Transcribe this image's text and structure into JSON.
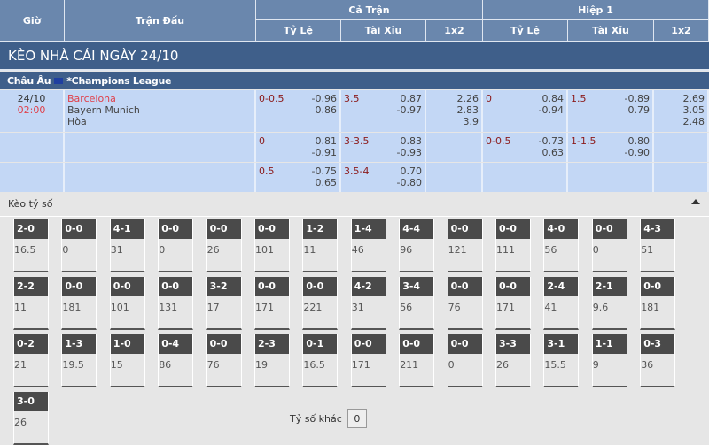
{
  "header": {
    "time": "Giờ",
    "match": "Trận Đấu",
    "full": "Cả Trận",
    "half": "Hiệp 1",
    "hdp": "Tỷ Lệ",
    "ou": "Tài Xỉu",
    "x12": "1x2"
  },
  "title": "KÈO NHÀ CÁI NGÀY 24/10",
  "league": {
    "region": "Châu Âu",
    "name": "*Champions League"
  },
  "match": {
    "date": "24/10",
    "time": "02:00",
    "home": "Barcelona",
    "away": "Bayern Munich",
    "draw": "Hòa"
  },
  "rows": [
    {
      "ft_hdp": "0-0.5",
      "ft_hdp_odds": [
        "-0.96",
        "0.86"
      ],
      "ft_ou": "3.5",
      "ft_ou_odds": [
        "0.87",
        "-0.97"
      ],
      "ft_1x2": [
        "2.26",
        "2.83",
        "3.9"
      ],
      "h1_hdp": "0",
      "h1_hdp_odds": [
        "0.84",
        "-0.94"
      ],
      "h1_ou": "1.5",
      "h1_ou_odds": [
        "-0.89",
        "0.79"
      ],
      "h1_1x2": [
        "2.69",
        "3.05",
        "2.48"
      ]
    },
    {
      "ft_hdp": "0",
      "ft_hdp_odds": [
        "0.81",
        "-0.91"
      ],
      "ft_ou": "3-3.5",
      "ft_ou_odds": [
        "0.83",
        "-0.93"
      ],
      "ft_1x2": [],
      "h1_hdp": "0-0.5",
      "h1_hdp_odds": [
        "-0.73",
        "0.63"
      ],
      "h1_ou": "1-1.5",
      "h1_ou_odds": [
        "0.80",
        "-0.90"
      ],
      "h1_1x2": []
    },
    {
      "ft_hdp": "0.5",
      "ft_hdp_odds": [
        "-0.75",
        "0.65"
      ],
      "ft_ou": "3.5-4",
      "ft_ou_odds": [
        "0.70",
        "-0.80"
      ],
      "ft_1x2": [],
      "h1_hdp": "",
      "h1_hdp_odds": [],
      "h1_ou": "",
      "h1_ou_odds": [],
      "h1_1x2": []
    }
  ],
  "correct_score": {
    "title": "Kèo tỷ số",
    "other_label": "Tỷ số khác",
    "other_value": "0",
    "cards": [
      [
        "2-0",
        "16.5"
      ],
      [
        "0-0",
        "0"
      ],
      [
        "4-1",
        "31"
      ],
      [
        "0-0",
        "0"
      ],
      [
        "0-0",
        "26"
      ],
      [
        "0-0",
        "101"
      ],
      [
        "1-2",
        "11"
      ],
      [
        "1-4",
        "46"
      ],
      [
        "4-4",
        "96"
      ],
      [
        "0-0",
        "121"
      ],
      [
        "0-0",
        "111"
      ],
      [
        "4-0",
        "56"
      ],
      [
        "0-0",
        "0"
      ],
      [
        "4-3",
        "51"
      ],
      [
        "2-2",
        "11"
      ],
      [
        "0-0",
        "181"
      ],
      [
        "0-0",
        "101"
      ],
      [
        "0-0",
        "131"
      ],
      [
        "3-2",
        "17"
      ],
      [
        "0-0",
        "171"
      ],
      [
        "0-0",
        "221"
      ],
      [
        "4-2",
        "31"
      ],
      [
        "3-4",
        "56"
      ],
      [
        "0-0",
        "76"
      ],
      [
        "0-0",
        "171"
      ],
      [
        "2-4",
        "41"
      ],
      [
        "2-1",
        "9.6"
      ],
      [
        "0-0",
        "181"
      ],
      [
        "0-2",
        "21"
      ],
      [
        "1-3",
        "19.5"
      ],
      [
        "1-0",
        "15"
      ],
      [
        "0-4",
        "86"
      ],
      [
        "0-0",
        "76"
      ],
      [
        "2-3",
        "19"
      ],
      [
        "0-1",
        "16.5"
      ],
      [
        "0-0",
        "171"
      ],
      [
        "0-0",
        "211"
      ],
      [
        "0-0",
        "0"
      ],
      [
        "3-3",
        "26"
      ],
      [
        "3-1",
        "15.5"
      ],
      [
        "1-1",
        "9"
      ],
      [
        "0-3",
        "36"
      ],
      [
        "3-0",
        "26"
      ]
    ]
  }
}
